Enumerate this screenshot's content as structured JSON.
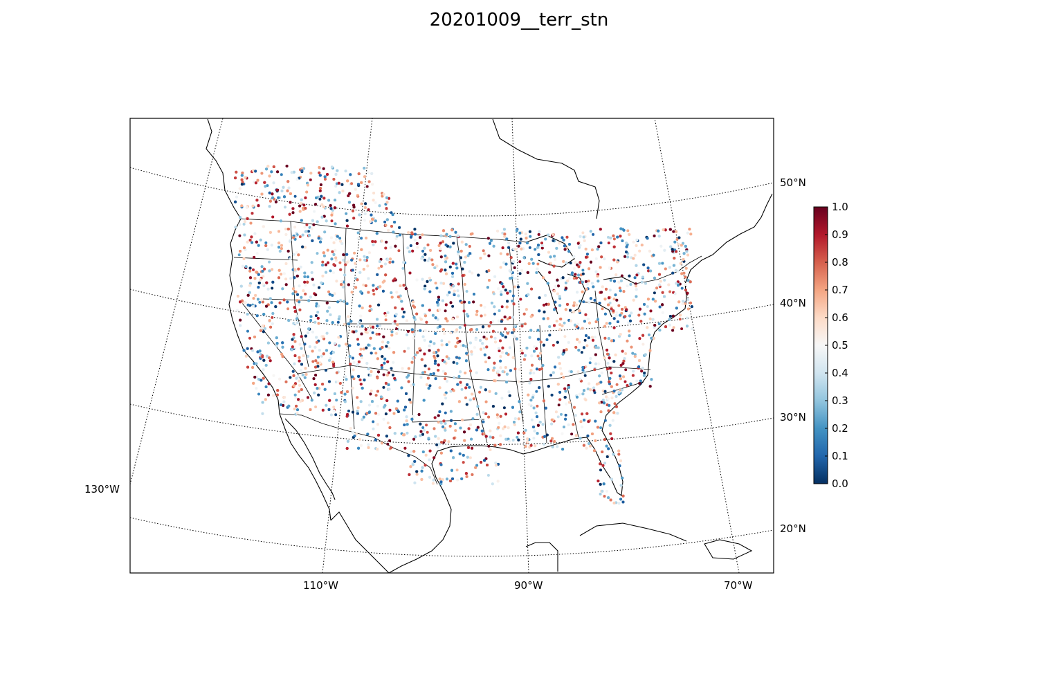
{
  "title": "20201009__terr_stn",
  "map": {
    "projection": "lambert-conformal",
    "lat_labels": [
      "50°N",
      "40°N",
      "30°N",
      "20°N"
    ],
    "lon_labels": [
      "130°W",
      "110°W",
      "90°W",
      "70°W"
    ],
    "parallels_deg": [
      20,
      30,
      40,
      50
    ],
    "meridians_deg": [
      -130,
      -110,
      -90,
      -70
    ],
    "extent": {
      "lon_min": -127,
      "lon_max": -65,
      "lat_min": 17,
      "lat_max": 57
    }
  },
  "points": {
    "description_value": "station value",
    "range": [
      0.0,
      1.0
    ],
    "colormap": "RdBu_r"
  },
  "colorbar": {
    "ticks": [
      "0.0",
      "0.1",
      "0.2",
      "0.3",
      "0.4",
      "0.5",
      "0.6",
      "0.7",
      "0.8",
      "0.9",
      "1.0"
    ],
    "colors": [
      "#053061",
      "#2166ac",
      "#4393c3",
      "#92c5de",
      "#d1e5f0",
      "#f7f7f7",
      "#fddbc7",
      "#f4a582",
      "#d6604d",
      "#b2182b",
      "#67001f"
    ]
  }
}
